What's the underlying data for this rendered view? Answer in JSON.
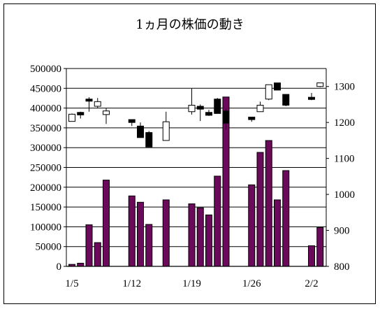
{
  "chart_data": {
    "type": "bar",
    "title": "1ヵ月の株価の動き",
    "xlabel": "",
    "ylabel": "",
    "x_tick_labels": [
      "1/5",
      "1/12",
      "1/19",
      "1/26",
      "2/2"
    ],
    "y_left_ticks": [
      "500000",
      "450000",
      "400000",
      "350000",
      "300000",
      "250000",
      "200000",
      "150000",
      "100000",
      "50000",
      "0"
    ],
    "y_right_ticks": [
      "1300",
      "1200",
      "1100",
      "1000",
      "900",
      "800"
    ],
    "ylim_left": [
      0,
      500000
    ],
    "ylim_right": [
      800,
      1350
    ],
    "grid": true,
    "colors": {
      "volume_bar": "#6b0a5a",
      "candle_up": "#ffffff",
      "candle_down": "#000000",
      "gridline": "#000000"
    },
    "series": [
      {
        "type": "bar",
        "axis": "left",
        "values": [
          {
            "date": "1/5",
            "volume": 5000
          },
          {
            "date": "1/6",
            "volume": 8000
          },
          {
            "date": "1/7",
            "volume": 105000
          },
          {
            "date": "1/8",
            "volume": 60000
          },
          {
            "date": "1/9",
            "volume": 218000
          },
          {
            "date": "1/12",
            "volume": 178000
          },
          {
            "date": "1/13",
            "volume": 162000
          },
          {
            "date": "1/14",
            "volume": 106000
          },
          {
            "date": "1/16",
            "volume": 168000
          },
          {
            "date": "1/19",
            "volume": 158000
          },
          {
            "date": "1/20",
            "volume": 148000
          },
          {
            "date": "1/21",
            "volume": 130000
          },
          {
            "date": "1/22",
            "volume": 228000
          },
          {
            "date": "1/23",
            "volume": 428000
          },
          {
            "date": "1/26",
            "volume": 206000
          },
          {
            "date": "1/27",
            "volume": 288000
          },
          {
            "date": "1/28",
            "volume": 318000
          },
          {
            "date": "1/29",
            "volume": 168000
          },
          {
            "date": "1/30",
            "volume": 242000
          },
          {
            "date": "2/2",
            "volume": 52000
          },
          {
            "date": "2/3",
            "volume": 98000
          }
        ]
      },
      {
        "type": "candlestick",
        "axis": "right",
        "values": [
          {
            "date": "1/5",
            "open": 1203,
            "close": 1223,
            "high": 1225,
            "low": 1203
          },
          {
            "date": "1/6",
            "open": 1228,
            "close": 1221,
            "high": 1230,
            "low": 1211
          },
          {
            "date": "1/7",
            "open": 1265,
            "close": 1260,
            "high": 1270,
            "low": 1230
          },
          {
            "date": "1/8",
            "open": 1245,
            "close": 1258,
            "high": 1268,
            "low": 1240
          },
          {
            "date": "1/9",
            "open": 1222,
            "close": 1232,
            "high": 1240,
            "low": 1196
          },
          {
            "date": "1/12",
            "open": 1208,
            "close": 1200,
            "high": 1208,
            "low": 1190
          },
          {
            "date": "1/13",
            "open": 1190,
            "close": 1158,
            "high": 1200,
            "low": 1158
          },
          {
            "date": "1/14",
            "open": 1172,
            "close": 1132,
            "high": 1176,
            "low": 1132
          },
          {
            "date": "1/16",
            "open": 1150,
            "close": 1202,
            "high": 1230,
            "low": 1150
          },
          {
            "date": "1/19",
            "open": 1230,
            "close": 1248,
            "high": 1295,
            "low": 1222
          },
          {
            "date": "1/20",
            "open": 1245,
            "close": 1237,
            "high": 1250,
            "low": 1204
          },
          {
            "date": "1/21",
            "open": 1228,
            "close": 1220,
            "high": 1235,
            "low": 1218
          },
          {
            "date": "1/22",
            "open": 1265,
            "close": 1225,
            "high": 1268,
            "low": 1225
          },
          {
            "date": "1/23",
            "open": 1232,
            "close": 1198,
            "high": 1238,
            "low": 1180
          },
          {
            "date": "1/26",
            "open": 1215,
            "close": 1208,
            "high": 1215,
            "low": 1202
          },
          {
            "date": "1/27",
            "open": 1230,
            "close": 1248,
            "high": 1258,
            "low": 1230
          },
          {
            "date": "1/28",
            "open": 1265,
            "close": 1305,
            "high": 1305,
            "low": 1262
          },
          {
            "date": "1/29",
            "open": 1310,
            "close": 1290,
            "high": 1310,
            "low": 1290
          },
          {
            "date": "1/30",
            "open": 1278,
            "close": 1248,
            "high": 1278,
            "low": 1245
          },
          {
            "date": "2/2",
            "open": 1270,
            "close": 1264,
            "high": 1282,
            "low": 1262
          },
          {
            "date": "2/3",
            "open": 1300,
            "close": 1310,
            "high": 1310,
            "low": 1298
          }
        ]
      }
    ]
  }
}
